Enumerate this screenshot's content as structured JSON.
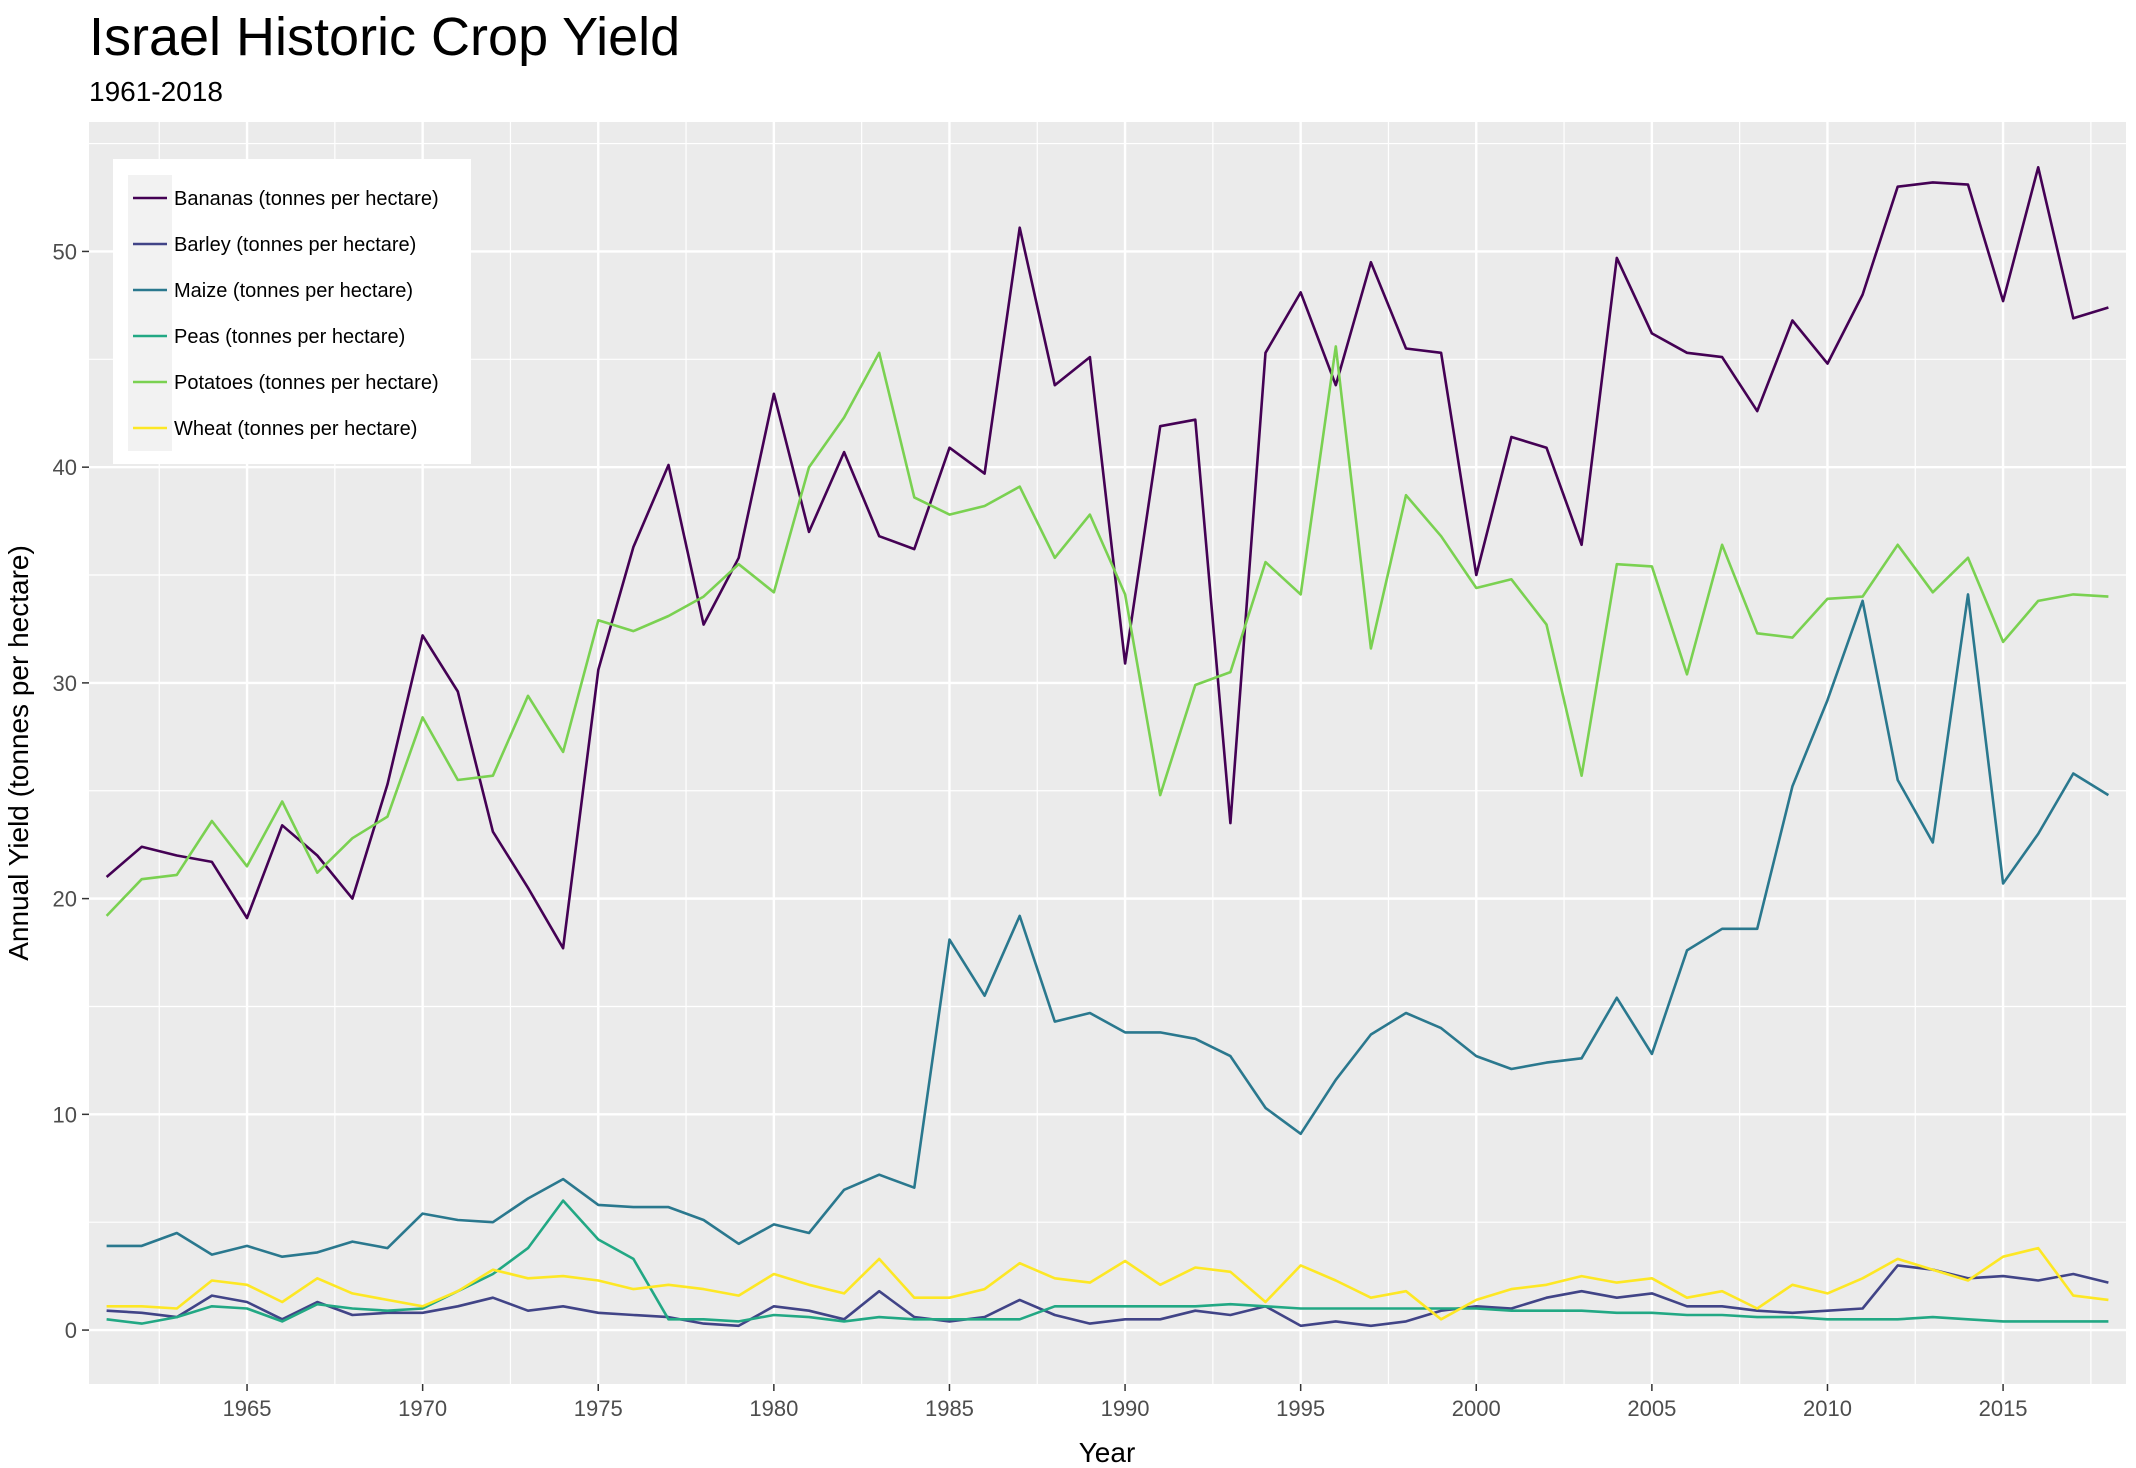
{
  "chart_data": {
    "type": "line",
    "title": "Israel Historic Crop Yield",
    "subtitle": "1961-2018",
    "xlabel": "Year",
    "ylabel": "Annual Yield (tonnes per hectare)",
    "xlim": [
      1960.5,
      2018.5
    ],
    "ylim": [
      -2.5,
      56
    ],
    "x_ticks": [
      1965,
      1970,
      1975,
      1980,
      1985,
      1990,
      1995,
      2000,
      2005,
      2010,
      2015
    ],
    "y_ticks": [
      0,
      10,
      20,
      30,
      40,
      50
    ],
    "grid": true,
    "legend_position": "top-left",
    "x": [
      1961,
      1962,
      1963,
      1964,
      1965,
      1966,
      1967,
      1968,
      1969,
      1970,
      1971,
      1972,
      1973,
      1974,
      1975,
      1976,
      1977,
      1978,
      1979,
      1980,
      1981,
      1982,
      1983,
      1984,
      1985,
      1986,
      1987,
      1988,
      1989,
      1990,
      1991,
      1992,
      1993,
      1994,
      1995,
      1996,
      1997,
      1998,
      1999,
      2000,
      2001,
      2002,
      2003,
      2004,
      2005,
      2006,
      2007,
      2008,
      2009,
      2010,
      2011,
      2012,
      2013,
      2014,
      2015,
      2016,
      2017,
      2018
    ],
    "series": [
      {
        "name": "Bananas (tonnes per hectare)",
        "color": "#440154",
        "values": [
          21.0,
          22.4,
          22.0,
          21.7,
          19.1,
          23.4,
          22.0,
          20.0,
          25.3,
          32.2,
          29.6,
          23.1,
          20.5,
          17.7,
          30.6,
          36.3,
          40.1,
          32.7,
          35.8,
          43.4,
          37.0,
          40.7,
          36.8,
          36.2,
          40.9,
          39.7,
          51.1,
          43.8,
          45.1,
          30.9,
          41.9,
          42.2,
          23.5,
          45.3,
          48.1,
          43.8,
          49.5,
          45.5,
          45.3,
          35.0,
          41.4,
          40.9,
          36.4,
          49.7,
          46.2,
          45.3,
          45.1,
          42.6,
          46.8,
          44.8,
          48.0,
          53.0,
          53.2,
          53.1,
          47.7,
          53.9,
          46.9,
          47.4
        ]
      },
      {
        "name": "Barley (tonnes per hectare)",
        "color": "#414487",
        "values": [
          0.9,
          0.8,
          0.6,
          1.6,
          1.3,
          0.5,
          1.3,
          0.7,
          0.8,
          0.8,
          1.1,
          1.5,
          0.9,
          1.1,
          0.8,
          0.7,
          0.6,
          0.3,
          0.2,
          1.1,
          0.9,
          0.5,
          1.8,
          0.6,
          0.4,
          0.6,
          1.4,
          0.7,
          0.3,
          0.5,
          0.5,
          0.9,
          0.7,
          1.1,
          0.2,
          0.4,
          0.2,
          0.4,
          0.9,
          1.1,
          1.0,
          1.5,
          1.8,
          1.5,
          1.7,
          1.1,
          1.1,
          0.9,
          0.8,
          0.9,
          1.0,
          3.0,
          2.8,
          2.4,
          2.5,
          2.3,
          2.6,
          2.2
        ]
      },
      {
        "name": "Maize (tonnes per hectare)",
        "color": "#2A788E",
        "values": [
          3.9,
          3.9,
          4.5,
          3.5,
          3.9,
          3.4,
          3.6,
          4.1,
          3.8,
          5.4,
          5.1,
          5.0,
          6.1,
          7.0,
          5.8,
          5.7,
          5.7,
          5.1,
          4.0,
          4.9,
          4.5,
          6.5,
          7.2,
          6.6,
          18.1,
          15.5,
          19.2,
          14.3,
          14.7,
          13.8,
          13.8,
          13.5,
          12.7,
          10.3,
          9.1,
          11.6,
          13.7,
          14.7,
          14.0,
          12.7,
          12.1,
          12.4,
          12.6,
          15.4,
          12.8,
          17.6,
          18.6,
          18.6,
          25.2,
          29.2,
          33.8,
          25.5,
          22.6,
          34.1,
          20.7,
          23.0,
          25.8,
          24.8
        ]
      },
      {
        "name": "Peas (tonnes per hectare)",
        "color": "#22A884",
        "values": [
          0.5,
          0.3,
          0.6,
          1.1,
          1.0,
          0.4,
          1.2,
          1.0,
          0.9,
          1.0,
          1.8,
          2.6,
          3.8,
          6.0,
          4.2,
          3.3,
          0.5,
          0.5,
          0.4,
          0.7,
          0.6,
          0.4,
          0.6,
          0.5,
          0.5,
          0.5,
          0.5,
          1.1,
          1.1,
          1.1,
          1.1,
          1.1,
          1.2,
          1.1,
          1.0,
          1.0,
          1.0,
          1.0,
          1.0,
          1.0,
          0.9,
          0.9,
          0.9,
          0.8,
          0.8,
          0.7,
          0.7,
          0.6,
          0.6,
          0.5,
          0.5,
          0.5,
          0.6,
          0.5,
          0.4,
          0.4,
          0.4,
          0.4
        ]
      },
      {
        "name": "Potatoes (tonnes per hectare)",
        "color": "#7AD151",
        "values": [
          19.2,
          20.9,
          21.1,
          23.6,
          21.5,
          24.5,
          21.2,
          22.8,
          23.8,
          28.4,
          25.5,
          25.7,
          29.4,
          26.8,
          32.9,
          32.4,
          33.1,
          34.0,
          35.5,
          34.2,
          40.0,
          42.3,
          45.3,
          38.6,
          37.8,
          38.2,
          39.1,
          35.8,
          37.8,
          34.1,
          24.8,
          29.9,
          30.5,
          35.6,
          34.1,
          45.6,
          31.6,
          38.7,
          36.8,
          34.4,
          34.8,
          32.7,
          25.7,
          35.5,
          35.4,
          30.4,
          36.4,
          32.3,
          32.1,
          33.9,
          34.0,
          36.4,
          34.2,
          35.8,
          31.9,
          33.8,
          34.1,
          34.0
        ]
      },
      {
        "name": "Wheat (tonnes per hectare)",
        "color": "#FDE725",
        "values": [
          1.1,
          1.1,
          1.0,
          2.3,
          2.1,
          1.3,
          2.4,
          1.7,
          1.4,
          1.1,
          1.8,
          2.8,
          2.4,
          2.5,
          2.3,
          1.9,
          2.1,
          1.9,
          1.6,
          2.6,
          2.1,
          1.7,
          3.3,
          1.5,
          1.5,
          1.9,
          3.1,
          2.4,
          2.2,
          3.2,
          2.1,
          2.9,
          2.7,
          1.3,
          3.0,
          2.3,
          1.5,
          1.8,
          0.5,
          1.4,
          1.9,
          2.1,
          2.5,
          2.2,
          2.4,
          1.5,
          1.8,
          1.0,
          2.1,
          1.7,
          2.4,
          3.3,
          2.8,
          2.3,
          3.4,
          3.8,
          1.6,
          1.4
        ]
      }
    ]
  }
}
